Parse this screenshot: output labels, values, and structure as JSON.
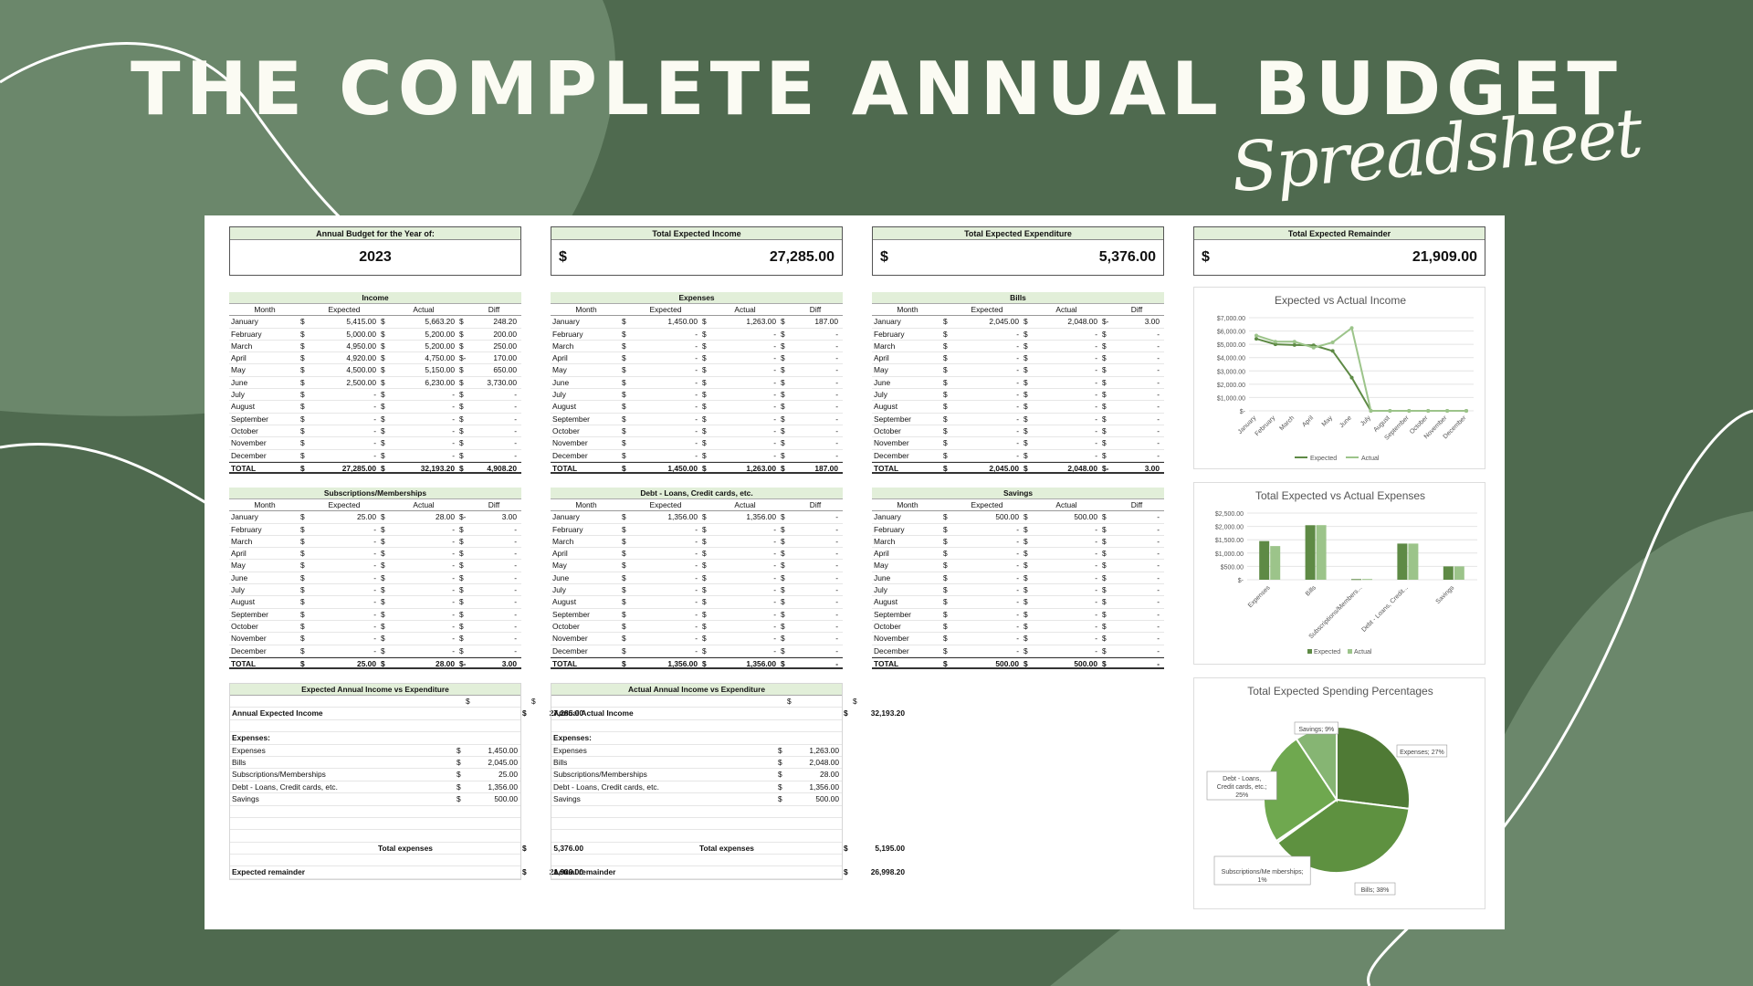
{
  "header": {
    "title": "THE COMPLETE ANNUAL BUDGET",
    "subtitle": "Spreadsheet"
  },
  "summary_cards": [
    {
      "label": "Annual Budget for the Year of:",
      "value": "2023",
      "currency": ""
    },
    {
      "label": "Total Expected Income",
      "value": "27,285.00",
      "currency": "$"
    },
    {
      "label": "Total Expected Expenditure",
      "value": "5,376.00",
      "currency": "$"
    },
    {
      "label": "Total Expected Remainder",
      "value": "21,909.00",
      "currency": "$"
    }
  ],
  "columns": [
    "Month",
    "Expected",
    "Actual",
    "Diff"
  ],
  "months": [
    "January",
    "February",
    "March",
    "April",
    "May",
    "June",
    "July",
    "August",
    "September",
    "October",
    "November",
    "December"
  ],
  "total_label": "TOTAL",
  "tables": [
    {
      "title": "Income",
      "rows": [
        [
          "5,415.00",
          "5,663.20",
          "",
          "248.20"
        ],
        [
          "5,000.00",
          "5,200.00",
          "",
          "200.00"
        ],
        [
          "4,950.00",
          "5,200.00",
          "",
          "250.00"
        ],
        [
          "4,920.00",
          "4,750.00",
          "-",
          "170.00"
        ],
        [
          "4,500.00",
          "5,150.00",
          "",
          "650.00"
        ],
        [
          "2,500.00",
          "6,230.00",
          "",
          "3,730.00"
        ],
        [
          "-",
          "-",
          "",
          "-"
        ],
        [
          "-",
          "-",
          "",
          "-"
        ],
        [
          "-",
          "-",
          "",
          "-"
        ],
        [
          "-",
          "-",
          "",
          "-"
        ],
        [
          "-",
          "-",
          "",
          "-"
        ],
        [
          "-",
          "-",
          "",
          "-"
        ]
      ],
      "total": [
        "27,285.00",
        "32,193.20",
        "",
        "4,908.20"
      ]
    },
    {
      "title": "Expenses",
      "rows": [
        [
          "1,450.00",
          "1,263.00",
          "",
          "187.00"
        ],
        [
          "-",
          "-",
          "",
          "-"
        ],
        [
          "-",
          "-",
          "",
          "-"
        ],
        [
          "-",
          "-",
          "",
          "-"
        ],
        [
          "-",
          "-",
          "",
          "-"
        ],
        [
          "-",
          "-",
          "",
          "-"
        ],
        [
          "-",
          "-",
          "",
          "-"
        ],
        [
          "-",
          "-",
          "",
          "-"
        ],
        [
          "-",
          "-",
          "",
          "-"
        ],
        [
          "-",
          "-",
          "",
          "-"
        ],
        [
          "-",
          "-",
          "",
          "-"
        ],
        [
          "-",
          "-",
          "",
          "-"
        ]
      ],
      "total": [
        "1,450.00",
        "1,263.00",
        "",
        "187.00"
      ]
    },
    {
      "title": "Bills",
      "rows": [
        [
          "2,045.00",
          "2,048.00",
          "-",
          "3.00"
        ],
        [
          "-",
          "-",
          "",
          "-"
        ],
        [
          "-",
          "-",
          "",
          "-"
        ],
        [
          "-",
          "-",
          "",
          "-"
        ],
        [
          "-",
          "-",
          "",
          "-"
        ],
        [
          "-",
          "-",
          "",
          "-"
        ],
        [
          "-",
          "-",
          "",
          "-"
        ],
        [
          "-",
          "-",
          "",
          "-"
        ],
        [
          "-",
          "-",
          "",
          "-"
        ],
        [
          "-",
          "-",
          "",
          "-"
        ],
        [
          "-",
          "-",
          "",
          "-"
        ],
        [
          "-",
          "-",
          "",
          "-"
        ]
      ],
      "total": [
        "2,045.00",
        "2,048.00",
        "-",
        "3.00"
      ]
    },
    {
      "title": "Subscriptions/Memberships",
      "rows": [
        [
          "25.00",
          "28.00",
          "-",
          "3.00"
        ],
        [
          "-",
          "-",
          "",
          "-"
        ],
        [
          "-",
          "-",
          "",
          "-"
        ],
        [
          "-",
          "-",
          "",
          "-"
        ],
        [
          "-",
          "-",
          "",
          "-"
        ],
        [
          "-",
          "-",
          "",
          "-"
        ],
        [
          "-",
          "-",
          "",
          "-"
        ],
        [
          "-",
          "-",
          "",
          "-"
        ],
        [
          "-",
          "-",
          "",
          "-"
        ],
        [
          "-",
          "-",
          "",
          "-"
        ],
        [
          "-",
          "-",
          "",
          "-"
        ],
        [
          "-",
          "-",
          "",
          "-"
        ]
      ],
      "total": [
        "25.00",
        "28.00",
        "-",
        "3.00"
      ]
    },
    {
      "title": "Debt - Loans, Credit cards, etc.",
      "rows": [
        [
          "1,356.00",
          "1,356.00",
          "",
          "-"
        ],
        [
          "-",
          "-",
          "",
          "-"
        ],
        [
          "-",
          "-",
          "",
          "-"
        ],
        [
          "-",
          "-",
          "",
          "-"
        ],
        [
          "-",
          "-",
          "",
          "-"
        ],
        [
          "-",
          "-",
          "",
          "-"
        ],
        [
          "-",
          "-",
          "",
          "-"
        ],
        [
          "-",
          "-",
          "",
          "-"
        ],
        [
          "-",
          "-",
          "",
          "-"
        ],
        [
          "-",
          "-",
          "",
          "-"
        ],
        [
          "-",
          "-",
          "",
          "-"
        ],
        [
          "-",
          "-",
          "",
          "-"
        ]
      ],
      "total": [
        "1,356.00",
        "1,356.00",
        "",
        "-"
      ]
    },
    {
      "title": "Savings",
      "rows": [
        [
          "500.00",
          "500.00",
          "",
          "-"
        ],
        [
          "-",
          "-",
          "",
          "-"
        ],
        [
          "-",
          "-",
          "",
          "-"
        ],
        [
          "-",
          "-",
          "",
          "-"
        ],
        [
          "-",
          "-",
          "",
          "-"
        ],
        [
          "-",
          "-",
          "",
          "-"
        ],
        [
          "-",
          "-",
          "",
          "-"
        ],
        [
          "-",
          "-",
          "",
          "-"
        ],
        [
          "-",
          "-",
          "",
          "-"
        ],
        [
          "-",
          "-",
          "",
          "-"
        ],
        [
          "-",
          "-",
          "",
          "-"
        ],
        [
          "-",
          "-",
          "",
          "-"
        ]
      ],
      "total": [
        "500.00",
        "500.00",
        "",
        "-"
      ]
    }
  ],
  "summaries": [
    {
      "title": "Expected Annual Income vs Expenditure",
      "income_label": "Annual Expected Income",
      "income": "27,285.00",
      "expenses_label": "Expenses:",
      "items": [
        [
          "Expenses",
          "1,450.00"
        ],
        [
          "Bills",
          "2,045.00"
        ],
        [
          "Subscriptions/Memberships",
          "25.00"
        ],
        [
          "Debt - Loans, Credit cards, etc.",
          "1,356.00"
        ],
        [
          "Savings",
          "500.00"
        ]
      ],
      "total_label": "Total expenses",
      "total": "5,376.00",
      "remainder_label": "Expected remainder",
      "remainder": "21,909.00"
    },
    {
      "title": "Actual Annual Income vs Expenditure",
      "income_label": "Annual Actual Income",
      "income": "32,193.20",
      "expenses_label": "Expenses:",
      "items": [
        [
          "Expenses",
          "1,263.00"
        ],
        [
          "Bills",
          "2,048.00"
        ],
        [
          "Subscriptions/Memberships",
          "28.00"
        ],
        [
          "Debt - Loans, Credit cards, etc.",
          "1,356.00"
        ],
        [
          "Savings",
          "500.00"
        ]
      ],
      "total_label": "Total expenses",
      "total": "5,195.00",
      "remainder_label": "Actual remainder",
      "remainder": "26,998.20"
    }
  ],
  "currency_symbol": "$",
  "chart_data": [
    {
      "type": "line",
      "title": "Expected vs Actual Income",
      "categories": [
        "January",
        "February",
        "March",
        "April",
        "May",
        "June",
        "July",
        "August",
        "September",
        "October",
        "November",
        "December"
      ],
      "series": [
        {
          "name": "Expected",
          "values": [
            5415,
            5000,
            4950,
            4920,
            4500,
            2500,
            0,
            0,
            0,
            0,
            0,
            0
          ],
          "color": "#5e8a45"
        },
        {
          "name": "Actual",
          "values": [
            5663.2,
            5200,
            5200,
            4750,
            5150,
            6230,
            0,
            0,
            0,
            0,
            0,
            0
          ],
          "color": "#9cc48a"
        }
      ],
      "yticks": [
        "$7,000.00",
        "$6,000.00",
        "$5,000.00",
        "$4,000.00",
        "$3,000.00",
        "$2,000.00",
        "$1,000.00",
        "$-"
      ],
      "ylim": [
        0,
        7000
      ],
      "legend": "bottom"
    },
    {
      "type": "bar",
      "title": "Total Expected vs Actual Expenses",
      "categories": [
        "Expenses",
        "Bills",
        "Subscriptions/Members...",
        "Debt - Loans, Credit...",
        "Savings"
      ],
      "series": [
        {
          "name": "Expected",
          "values": [
            1450,
            2045,
            25,
            1356,
            500
          ],
          "color": "#5e8a45"
        },
        {
          "name": "Actual",
          "values": [
            1263,
            2048,
            28,
            1356,
            500
          ],
          "color": "#9cc48a"
        }
      ],
      "yticks": [
        "$2,500.00",
        "$2,000.00",
        "$1,500.00",
        "$1,000.00",
        "$500.00",
        "$-"
      ],
      "ylim": [
        0,
        2500
      ],
      "legend": "bottom"
    },
    {
      "type": "pie",
      "title": "Total Expected Spending Percentages",
      "slices": [
        {
          "label": "Expenses; 27%",
          "value": 1450,
          "color": "#4f7a35"
        },
        {
          "label": "Bills; 38%",
          "value": 2045,
          "color": "#5e9140"
        },
        {
          "label": "Subscriptions/Me mberships; 1%",
          "value": 25,
          "color": "#6da64e"
        },
        {
          "label": "Debt - Loans, Credit cards, etc.; 25%",
          "value": 1356,
          "color": "#6fa84f"
        },
        {
          "label": "Savings; 9%",
          "value": 500,
          "color": "#86b573"
        }
      ]
    }
  ]
}
